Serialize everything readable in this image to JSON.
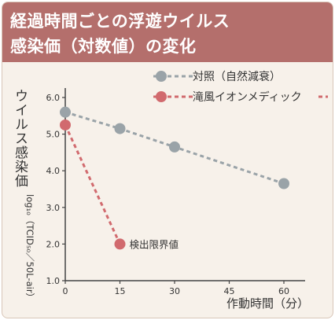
{
  "header": {
    "title_line1": "経過時間ごとの浮遊ウイルス",
    "title_line2": "感染価（対数値）の変化"
  },
  "colors": {
    "header_bg": "#b46f6c",
    "control": "#9aa3a8",
    "product": "#d16a6e",
    "axis": "#444444"
  },
  "chart_data": {
    "type": "line",
    "xlabel": "作動時間（分）",
    "ylabel_main": "ウイルス感染価",
    "ylabel_sub": "log₁₀（TCID₅₀／50L-air）",
    "xticks": [
      0,
      15,
      30,
      45,
      60
    ],
    "yticks": [
      "1.0",
      "2.0",
      "3.0",
      "4.0",
      "5.0",
      "6.0"
    ],
    "xlim": [
      0,
      60
    ],
    "ylim": [
      1.0,
      6.0
    ],
    "grid": false,
    "legend_position": "top-right",
    "series": [
      {
        "name": "対照（自然減衰）",
        "style": "dashed",
        "x": [
          0,
          15,
          30,
          60
        ],
        "y": [
          5.6,
          5.15,
          4.65,
          3.65
        ]
      },
      {
        "name": "滝風イオンメディック",
        "style": "dashed",
        "x": [
          0,
          15
        ],
        "y": [
          5.25,
          2.0
        ]
      }
    ],
    "annotations": [
      {
        "text": "検出限界値",
        "x": 15,
        "y": 2.0
      }
    ]
  }
}
